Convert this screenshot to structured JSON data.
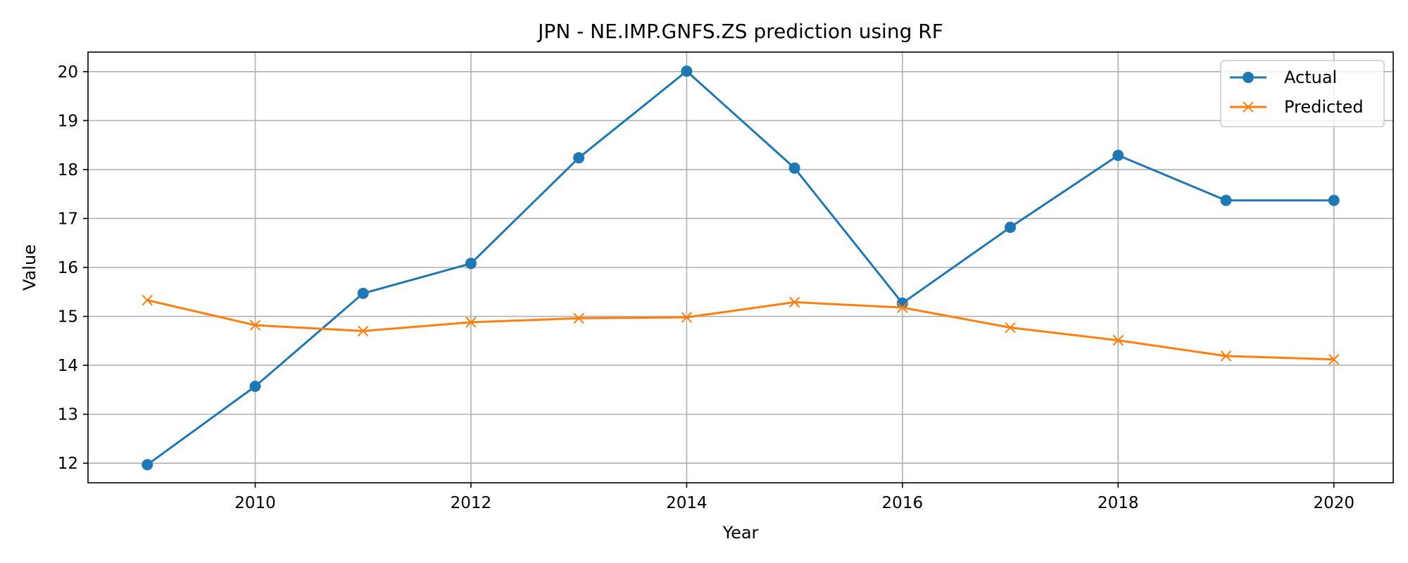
{
  "chart_data": {
    "type": "line",
    "title": "JPN - NE.IMP.GNFS.ZS prediction using RF",
    "xlabel": "Year",
    "ylabel": "Value",
    "x": [
      2009,
      2010,
      2011,
      2012,
      2013,
      2014,
      2015,
      2016,
      2017,
      2018,
      2019,
      2020
    ],
    "xlim": [
      2008.45,
      2020.55
    ],
    "ylim": [
      11.6,
      20.4
    ],
    "x_ticks": [
      "2010",
      "2012",
      "2014",
      "2016",
      "2018",
      "2020"
    ],
    "y_ticks": [
      "12",
      "13",
      "14",
      "15",
      "16",
      "17",
      "18",
      "19",
      "20"
    ],
    "grid": true,
    "legend_position": "top-right",
    "series": [
      {
        "name": "Actual",
        "color": "#1f77b4",
        "marker": "circle",
        "values": [
          11.97,
          13.57,
          15.47,
          16.08,
          18.24,
          20.01,
          18.03,
          15.27,
          16.82,
          18.29,
          17.37,
          17.37
        ]
      },
      {
        "name": "Predicted",
        "color": "#ff7f0e",
        "marker": "x",
        "values": [
          15.33,
          14.82,
          14.7,
          14.88,
          14.96,
          14.98,
          15.29,
          15.18,
          14.77,
          14.51,
          14.19,
          14.12
        ]
      }
    ]
  }
}
